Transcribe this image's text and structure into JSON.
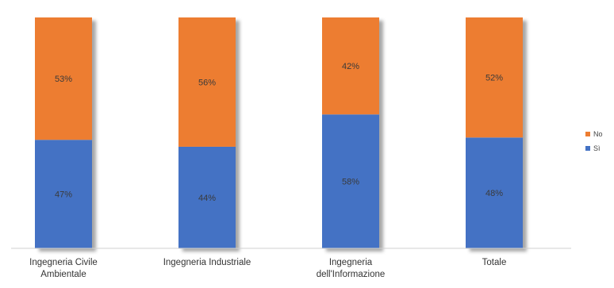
{
  "chart_data": {
    "type": "bar",
    "stacked": true,
    "categories": [
      [
        "Ingegneria Civile",
        "Ambientale"
      ],
      [
        "Ingegneria Industriale"
      ],
      [
        "Ingegneria",
        "dell'Informazione"
      ],
      [
        "Totale"
      ]
    ],
    "series": [
      {
        "name": "Sì",
        "color": "#4472C4",
        "values": [
          47,
          44,
          58,
          48
        ],
        "labels": [
          "47%",
          "44%",
          "58%",
          "48%"
        ]
      },
      {
        "name": "No",
        "color": "#ED7D31",
        "values": [
          53,
          56,
          42,
          52
        ],
        "labels": [
          "53%",
          "56%",
          "42%",
          "52%"
        ]
      }
    ],
    "ylim": [
      0,
      100
    ],
    "legend_position": "right",
    "legend_order": [
      "No",
      "Sì"
    ],
    "grid": false
  }
}
